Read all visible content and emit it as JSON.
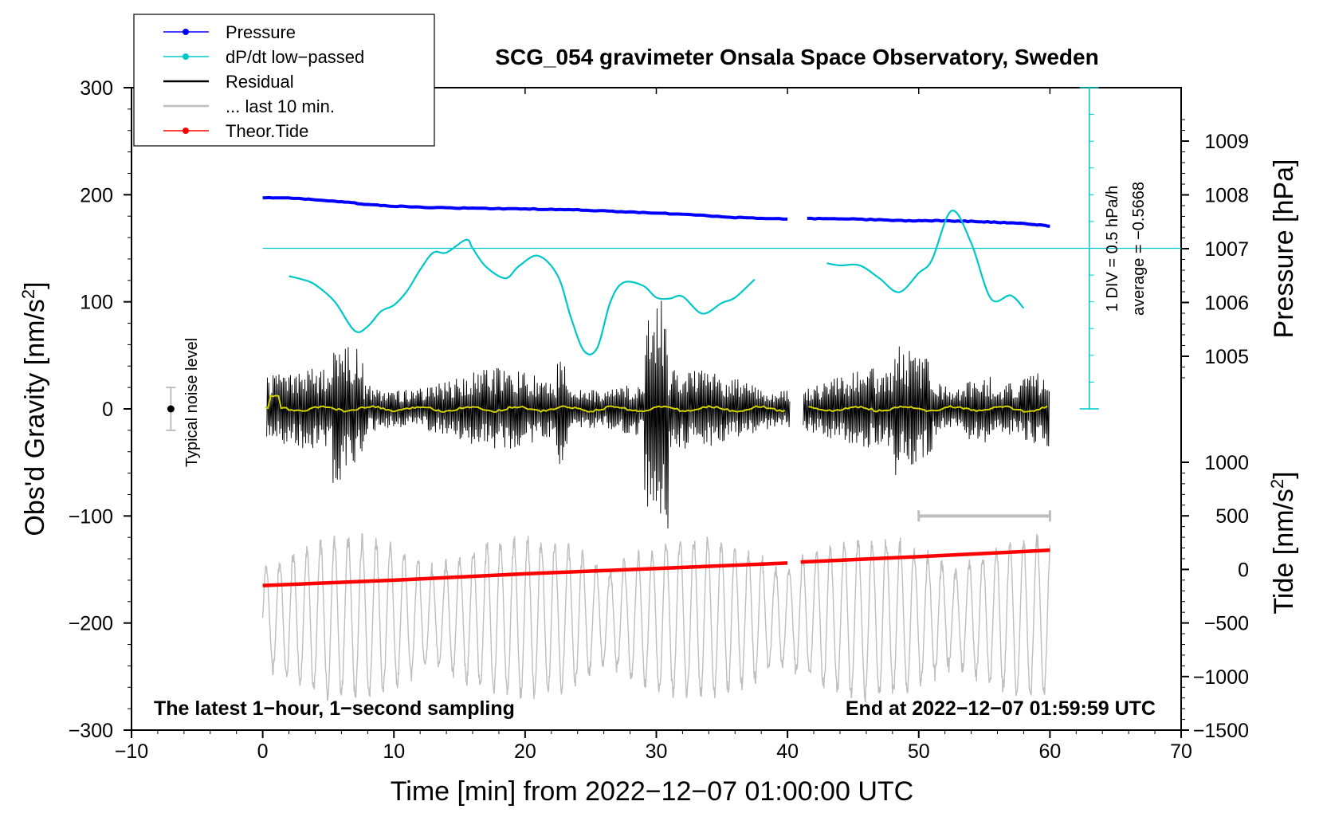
{
  "chart_data": {
    "type": "line",
    "title": "SCG_054 gravimeter Onsala Space Observatory, Sweden",
    "xlabel": "Time [min] from 2022−12−07 01:00:00 UTC",
    "ylabel_left": "Obs'd Gravity [nm/s",
    "ylabel_left_sup": "2",
    "ylabel_left_close": "]",
    "ylabel_right_pressure": "Pressure [hPa]",
    "ylabel_right_tide": "Tide [nm/s",
    "ylabel_right_tide_sup": "2",
    "ylabel_right_tide_close": "]",
    "xlim": [
      -10,
      70
    ],
    "ylim": [
      -300,
      300
    ],
    "x_ticks": [
      "−10",
      "0",
      "10",
      "20",
      "30",
      "40",
      "50",
      "60",
      "70"
    ],
    "x_tick_values": [
      -10,
      0,
      10,
      20,
      30,
      40,
      50,
      60,
      70
    ],
    "y_ticks": [
      "300",
      "200",
      "100",
      "0",
      "−100",
      "−200",
      "−300"
    ],
    "y_tick_values": [
      300,
      200,
      100,
      0,
      -100,
      -200,
      -300
    ],
    "pressure_ticks": [
      "1009",
      "1008",
      "1007",
      "1006",
      "1005"
    ],
    "pressure_tick_values": [
      1009,
      1008,
      1007,
      1006,
      1005
    ],
    "tide_ticks": [
      "1000",
      "500",
      "0",
      "−500",
      "−1000",
      "−1500"
    ],
    "tide_tick_values": [
      1000,
      500,
      0,
      -500,
      -1000,
      -1500
    ],
    "legend": [
      {
        "label": "Pressure",
        "color": "#0000ff",
        "marker": true
      },
      {
        "label": "dP/dt low−passed",
        "color": "#00c8c8",
        "marker": true
      },
      {
        "label": "Residual",
        "color": "#000000",
        "marker": false
      },
      {
        "label": "... last 10 min.",
        "color": "#bebebe",
        "marker": false
      },
      {
        "label": "Theor.Tide",
        "color": "#ff0000",
        "marker": true
      }
    ],
    "annotations": {
      "bottom_left": "The latest 1−hour, 1−second sampling",
      "bottom_right": "End at 2022−12−07 01:59:59 UTC",
      "noise_label": "Typical noise level",
      "div_label": "1 DIV = 0.5 hPa/h",
      "average_label": "average = −0.5668"
    },
    "series": [
      {
        "name": "Pressure",
        "unit": "hPa",
        "color": "#0000ff",
        "segments": [
          [
            [
              0,
              1007.95
            ],
            [
              3,
              1007.93
            ],
            [
              6,
              1007.87
            ],
            [
              9,
              1007.8
            ],
            [
              12,
              1007.77
            ],
            [
              16,
              1007.75
            ],
            [
              20,
              1007.74
            ],
            [
              24,
              1007.72
            ],
            [
              28,
              1007.68
            ],
            [
              32,
              1007.64
            ],
            [
              36,
              1007.58
            ],
            [
              40,
              1007.55
            ]
          ],
          [
            [
              41.5,
              1007.56
            ],
            [
              45,
              1007.55
            ],
            [
              49,
              1007.52
            ],
            [
              52,
              1007.52
            ],
            [
              55,
              1007.5
            ],
            [
              58,
              1007.47
            ],
            [
              60,
              1007.42
            ]
          ]
        ]
      },
      {
        "name": "dP/dt low-passed",
        "unit": "div (0.5 hPa/h)",
        "color": "#00c8c8",
        "reference_level": 150,
        "segments": [
          [
            [
              2,
              124
            ],
            [
              3,
              121
            ],
            [
              4,
              116
            ],
            [
              5.5,
              100
            ],
            [
              7,
              73
            ],
            [
              8,
              77
            ],
            [
              9,
              91
            ],
            [
              10,
              97
            ],
            [
              11,
              110
            ],
            [
              12,
              130
            ],
            [
              13,
              146
            ],
            [
              14,
              146
            ],
            [
              15.5,
              158
            ],
            [
              16,
              150
            ],
            [
              17,
              133
            ],
            [
              18.5,
              122
            ],
            [
              19.5,
              133
            ],
            [
              21,
              143
            ],
            [
              22.5,
              124
            ],
            [
              23.5,
              85
            ],
            [
              24.5,
              54
            ],
            [
              25.5,
              57
            ],
            [
              26.5,
              100
            ],
            [
              27.5,
              118
            ],
            [
              29,
              115
            ],
            [
              30,
              104
            ],
            [
              31,
              103
            ],
            [
              32,
              105
            ],
            [
              33.5,
              89
            ],
            [
              35,
              99
            ],
            [
              36,
              104
            ],
            [
              37.5,
              121
            ]
          ],
          [
            [
              43,
              136
            ],
            [
              44,
              134
            ],
            [
              45.5,
              134
            ],
            [
              47,
              122
            ],
            [
              48.5,
              109
            ],
            [
              50,
              127
            ],
            [
              51,
              139
            ],
            [
              52.5,
              185
            ],
            [
              54,
              155
            ],
            [
              55.5,
              103
            ],
            [
              57,
              106
            ],
            [
              58,
              94
            ]
          ]
        ]
      },
      {
        "name": "Theor.Tide",
        "unit": "nm/s2",
        "color": "#ff0000",
        "segments": [
          [
            [
              0,
              -165
            ],
            [
              10,
              -160
            ],
            [
              20,
              -154
            ],
            [
              30,
              -149
            ],
            [
              40,
              -144
            ]
          ],
          [
            [
              41,
              -143
            ],
            [
              50,
              -138
            ],
            [
              60,
              -132
            ]
          ]
        ]
      }
    ],
    "residual_summary": {
      "data_start_min": 0.3,
      "data_end_min": 60,
      "gap_min": [
        40.2,
        41.2
      ],
      "yellow_filtered_mean": 0
    },
    "noise_bar": {
      "x": -7,
      "center": 0,
      "half_range": 20
    },
    "scale_bar": {
      "x_start": 50,
      "x_end": 60,
      "y": -100
    }
  }
}
